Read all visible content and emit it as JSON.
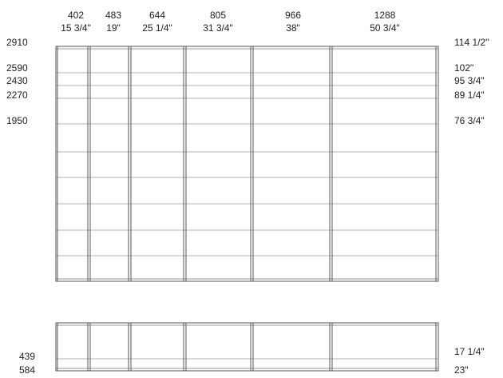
{
  "columns": [
    {
      "mm": "402",
      "inches": "15 3/4\""
    },
    {
      "mm": "483",
      "inches": "19\""
    },
    {
      "mm": "644",
      "inches": "25 1/4\""
    },
    {
      "mm": "805",
      "inches": "31 3/4\""
    },
    {
      "mm": "966",
      "inches": "38\""
    },
    {
      "mm": "1288",
      "inches": "50 3/4\""
    }
  ],
  "heights_left": [
    "2910",
    "2590",
    "2430",
    "2270",
    "1950",
    "439",
    "584"
  ],
  "heights_right": [
    "114 1/2\"",
    "102\"",
    "95 3/4\"",
    "89 1/4\"",
    "76 3/4\"",
    "17 1/4\"",
    "23\""
  ],
  "colors": {
    "line": "#555555",
    "shelf": "#9a9a9a",
    "text": "#222222"
  }
}
